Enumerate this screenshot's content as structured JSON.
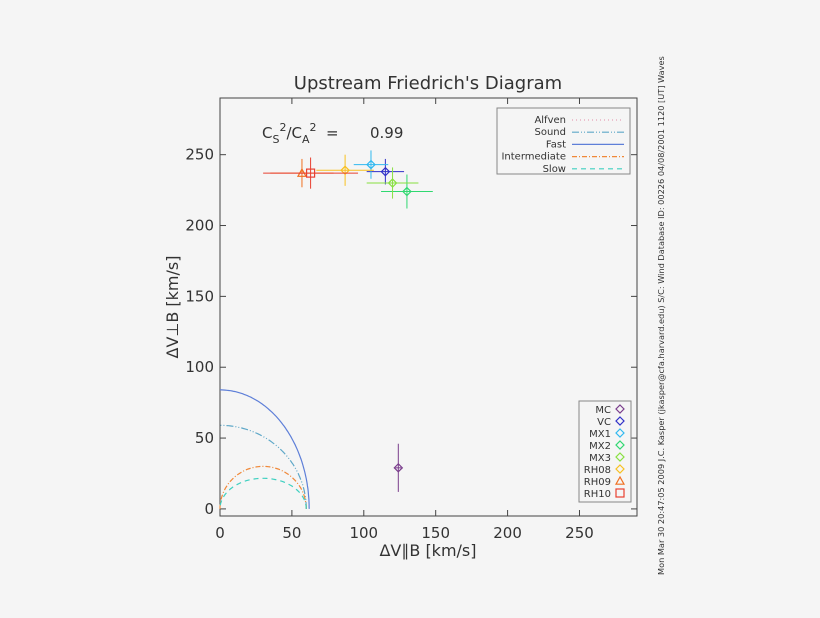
{
  "chart_data": {
    "type": "scatter",
    "title": "Upstream Friedrich's Diagram",
    "xlabel": "ΔV∥B [km/s]",
    "ylabel": "ΔV⊥B [km/s]",
    "xlim": [
      0,
      290
    ],
    "ylim": [
      -5,
      290
    ],
    "x_ticks": [
      0,
      50,
      100,
      150,
      200,
      250
    ],
    "y_ticks": [
      0,
      50,
      100,
      150,
      200,
      250
    ],
    "grid": false,
    "annotation": {
      "lhs_base": "C",
      "lhs_sub1": "S",
      "lhs_sup1": "2",
      "slash": "/",
      "lhs_sub2": "A",
      "lhs_sup2": "2",
      "equals": "=",
      "value": "0.99"
    },
    "side_text": "Mon Mar 30 20:47:05 2009   J.C. Kasper (jkasper@cfa.harvard.edu)    S/C: Wind Database ID: 00226 04/08/2001   1120 [UT]  Waves",
    "curve_legend": {
      "placement": "top-right",
      "entries": [
        {
          "name": "Alfven",
          "color": "#e8a0b8",
          "dash": "1,3"
        },
        {
          "name": "Sound",
          "color": "#5fa8c8",
          "dash": "7,2,1,2,1,2"
        },
        {
          "name": "Fast",
          "color": "#5e7fd8",
          "dash": ""
        },
        {
          "name": "Intermediate",
          "color": "#f08838",
          "dash": "5,2,1,2"
        },
        {
          "name": "Slow",
          "color": "#3ed0c0",
          "dash": "5,4"
        }
      ]
    },
    "curves": [
      {
        "name": "Fast",
        "type": "quarter-ellipse",
        "rx": 62,
        "ry": 84,
        "cx": 0,
        "cy": 0
      },
      {
        "name": "Sound",
        "type": "quarter-ellipse",
        "rx": 60,
        "ry": 59,
        "cx": 0,
        "cy": 0
      },
      {
        "name": "Intermediate",
        "type": "half-circle",
        "r": 30,
        "cx": 30,
        "cy": 0
      },
      {
        "name": "Slow",
        "type": "half-circle",
        "r": 30,
        "cx": 30,
        "cy": 0,
        "yscale": 0.72
      }
    ],
    "points_legend": {
      "placement": "bottom-right",
      "entries": [
        {
          "name": "MC",
          "color": "#7a3d8c",
          "marker": "diamond"
        },
        {
          "name": "VC",
          "color": "#3030c8",
          "marker": "diamond"
        },
        {
          "name": "MX1",
          "color": "#30b8f0",
          "marker": "diamond"
        },
        {
          "name": "MX2",
          "color": "#30d870",
          "marker": "diamond"
        },
        {
          "name": "MX3",
          "color": "#88e040",
          "marker": "diamond"
        },
        {
          "name": "RH08",
          "color": "#f8c020",
          "marker": "diamond"
        },
        {
          "name": "RH09",
          "color": "#f07020",
          "marker": "triangle"
        },
        {
          "name": "RH10",
          "color": "#e84030",
          "marker": "square"
        }
      ]
    },
    "points": [
      {
        "name": "MC",
        "x": 124,
        "y": 29,
        "xerr": 2,
        "yerr": 17
      },
      {
        "name": "VC",
        "x": 115,
        "y": 238,
        "xerr": 13,
        "yerr": 9
      },
      {
        "name": "MX1",
        "x": 105,
        "y": 243,
        "xerr": 12,
        "yerr": 10
      },
      {
        "name": "MX2",
        "x": 130,
        "y": 224,
        "xerr": 18,
        "yerr": 12
      },
      {
        "name": "MX3",
        "x": 120,
        "y": 230,
        "xerr": 18,
        "yerr": 11
      },
      {
        "name": "RH08",
        "x": 87,
        "y": 239,
        "xerr": 20,
        "yerr": 11
      },
      {
        "name": "RH09",
        "x": 57,
        "y": 237,
        "xerr": 22,
        "yerr": 10
      },
      {
        "name": "RH10",
        "x": 63,
        "y": 237,
        "xerr": 33,
        "yerr": 11
      }
    ]
  }
}
